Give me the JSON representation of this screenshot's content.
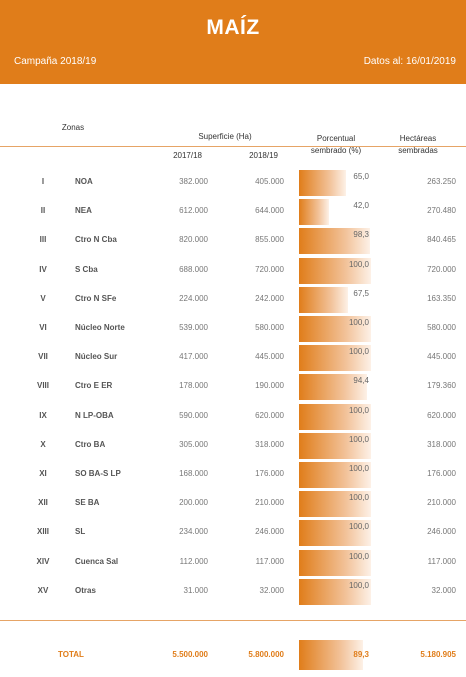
{
  "header": {
    "title": "MAÍZ",
    "campaign": "Campaña 2018/19",
    "date_info": "Datos al: 16/01/2019"
  },
  "columns": {
    "zonas": "Zonas",
    "superficie": "Superficie (Ha)",
    "year1": "2017/18",
    "year2": "2018/19",
    "porcentual_line1": "Porcentual",
    "porcentual_line2": "sembrado (%)",
    "hectareas_line1": "Hectáreas",
    "hectareas_line2": "sembradas"
  },
  "rows": [
    {
      "num": "I",
      "zone": "NOA",
      "y1": "382.000",
      "y2": "405.000",
      "pct": "65,0",
      "pct_value": 65.0,
      "ha": "263.250"
    },
    {
      "num": "II",
      "zone": "NEA",
      "y1": "612.000",
      "y2": "644.000",
      "pct": "42,0",
      "pct_value": 42.0,
      "ha": "270.480"
    },
    {
      "num": "III",
      "zone": "Ctro N Cba",
      "y1": "820.000",
      "y2": "855.000",
      "pct": "98,3",
      "pct_value": 98.3,
      "ha": "840.465"
    },
    {
      "num": "IV",
      "zone": "S Cba",
      "y1": "688.000",
      "y2": "720.000",
      "pct": "100,0",
      "pct_value": 100.0,
      "ha": "720.000"
    },
    {
      "num": "V",
      "zone": "Ctro N SFe",
      "y1": "224.000",
      "y2": "242.000",
      "pct": "67,5",
      "pct_value": 67.5,
      "ha": "163.350"
    },
    {
      "num": "VI",
      "zone": "Núcleo Norte",
      "y1": "539.000",
      "y2": "580.000",
      "pct": "100,0",
      "pct_value": 100.0,
      "ha": "580.000"
    },
    {
      "num": "VII",
      "zone": "Núcleo Sur",
      "y1": "417.000",
      "y2": "445.000",
      "pct": "100,0",
      "pct_value": 100.0,
      "ha": "445.000"
    },
    {
      "num": "VIII",
      "zone": "Ctro E ER",
      "y1": "178.000",
      "y2": "190.000",
      "pct": "94,4",
      "pct_value": 94.4,
      "ha": "179.360"
    },
    {
      "num": "IX",
      "zone": "N LP-OBA",
      "y1": "590.000",
      "y2": "620.000",
      "pct": "100,0",
      "pct_value": 100.0,
      "ha": "620.000"
    },
    {
      "num": "X",
      "zone": "Ctro BA",
      "y1": "305.000",
      "y2": "318.000",
      "pct": "100,0",
      "pct_value": 100.0,
      "ha": "318.000"
    },
    {
      "num": "XI",
      "zone": "SO BA-S LP",
      "y1": "168.000",
      "y2": "176.000",
      "pct": "100,0",
      "pct_value": 100.0,
      "ha": "176.000"
    },
    {
      "num": "XII",
      "zone": "SE BA",
      "y1": "200.000",
      "y2": "210.000",
      "pct": "100,0",
      "pct_value": 100.0,
      "ha": "210.000"
    },
    {
      "num": "XIII",
      "zone": "SL",
      "y1": "234.000",
      "y2": "246.000",
      "pct": "100,0",
      "pct_value": 100.0,
      "ha": "246.000"
    },
    {
      "num": "XIV",
      "zone": "Cuenca Sal",
      "y1": "112.000",
      "y2": "117.000",
      "pct": "100,0",
      "pct_value": 100.0,
      "ha": "117.000"
    },
    {
      "num": "XV",
      "zone": "Otras",
      "y1": "31.000",
      "y2": "32.000",
      "pct": "100,0",
      "pct_value": 100.0,
      "ha": "32.000"
    }
  ],
  "total": {
    "label": "TOTAL",
    "y1": "5.500.000",
    "y2": "5.800.000",
    "pct": "89,3",
    "pct_value": 89.3,
    "ha": "5.180.905"
  },
  "colors": {
    "accent": "#e07d1a",
    "bar_light": "#fdf1e7"
  }
}
